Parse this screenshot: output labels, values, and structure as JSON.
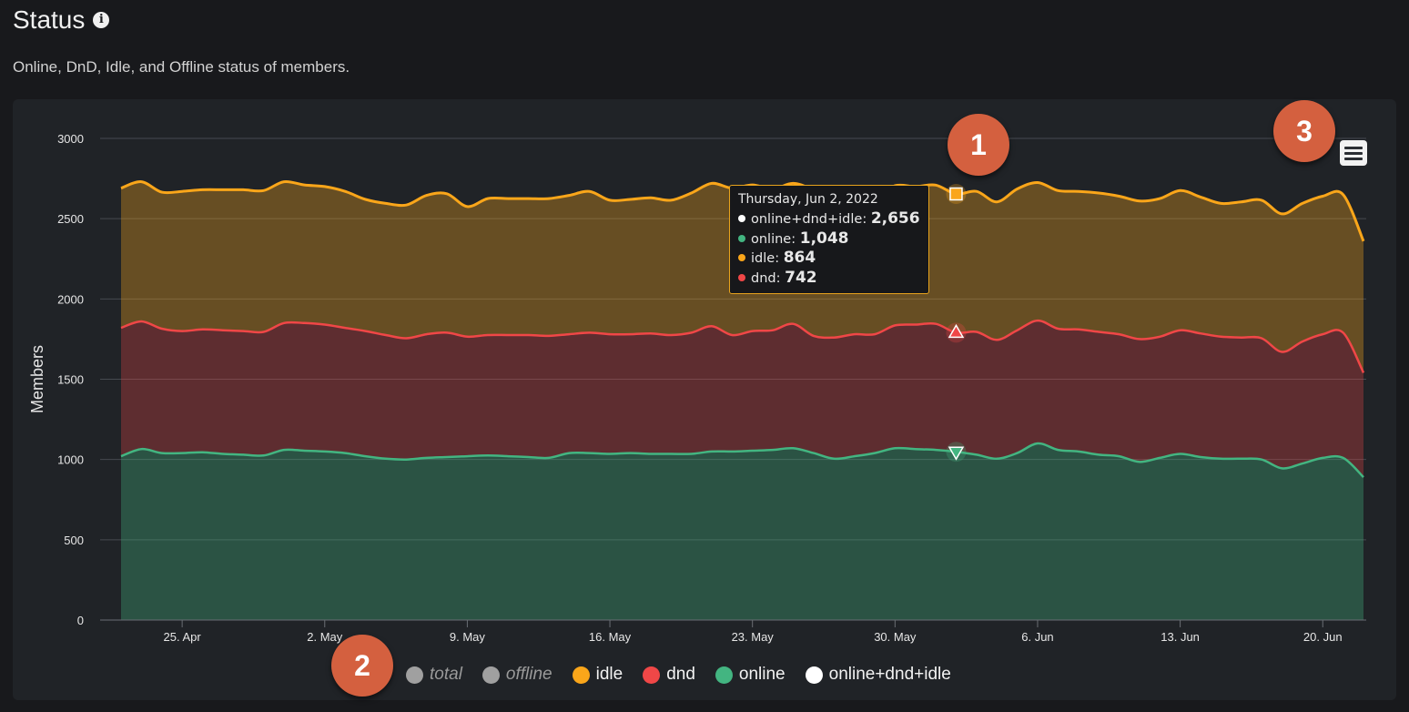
{
  "header": {
    "title": "Status",
    "subtitle": "Online, DnD, Idle, and Offline status of members."
  },
  "badges": [
    "1",
    "2",
    "3"
  ],
  "tooltip": {
    "date": "Thursday, Jun 2, 2022",
    "rows": [
      {
        "label": "online+dnd+idle",
        "value": "2,656",
        "color": "#ffffff"
      },
      {
        "label": "online",
        "value": "1,048",
        "color": "#43b581"
      },
      {
        "label": "idle",
        "value": "864",
        "color": "#faa61a"
      },
      {
        "label": "dnd",
        "value": "742",
        "color": "#f04747"
      }
    ]
  },
  "legend": [
    {
      "label": "total",
      "color": "#a0a0a0",
      "visible": false
    },
    {
      "label": "offline",
      "color": "#a0a0a0",
      "visible": false
    },
    {
      "label": "idle",
      "color": "#faa61a",
      "visible": true
    },
    {
      "label": "dnd",
      "color": "#f04747",
      "visible": true
    },
    {
      "label": "online",
      "color": "#43b581",
      "visible": true
    },
    {
      "label": "online+dnd+idle",
      "color": "#ffffff",
      "visible": true
    }
  ],
  "chart_data": {
    "type": "area",
    "stacked": true,
    "title": "",
    "xlabel": "",
    "ylabel": "Members",
    "ylim": [
      0,
      3000
    ],
    "y_ticks": [
      0,
      500,
      1000,
      1500,
      2000,
      2500,
      3000
    ],
    "x_range": [
      "2022-04-22",
      "2022-06-22"
    ],
    "x_ticks": [
      {
        "date": "2022-04-25",
        "label": "25. Apr"
      },
      {
        "date": "2022-05-02",
        "label": "2. May"
      },
      {
        "date": "2022-05-09",
        "label": "9. May"
      },
      {
        "date": "2022-05-16",
        "label": "16. May"
      },
      {
        "date": "2022-05-23",
        "label": "23. May"
      },
      {
        "date": "2022-05-30",
        "label": "30. May"
      },
      {
        "date": "2022-06-06",
        "label": "6. Jun"
      },
      {
        "date": "2022-06-13",
        "label": "13. Jun"
      },
      {
        "date": "2022-06-20",
        "label": "20. Jun"
      }
    ],
    "grid": true,
    "legend_position": "bottom",
    "highlight_date": "2022-06-02",
    "x": [
      "2022-04-22",
      "2022-04-23",
      "2022-04-24",
      "2022-04-25",
      "2022-04-26",
      "2022-04-27",
      "2022-04-28",
      "2022-04-29",
      "2022-04-30",
      "2022-05-01",
      "2022-05-02",
      "2022-05-03",
      "2022-05-04",
      "2022-05-05",
      "2022-05-06",
      "2022-05-07",
      "2022-05-08",
      "2022-05-09",
      "2022-05-10",
      "2022-05-11",
      "2022-05-12",
      "2022-05-13",
      "2022-05-14",
      "2022-05-15",
      "2022-05-16",
      "2022-05-17",
      "2022-05-18",
      "2022-05-19",
      "2022-05-20",
      "2022-05-21",
      "2022-05-22",
      "2022-05-23",
      "2022-05-24",
      "2022-05-25",
      "2022-05-26",
      "2022-05-27",
      "2022-05-28",
      "2022-05-29",
      "2022-05-30",
      "2022-05-31",
      "2022-06-01",
      "2022-06-02",
      "2022-06-03",
      "2022-06-04",
      "2022-06-05",
      "2022-06-06",
      "2022-06-07",
      "2022-06-08",
      "2022-06-09",
      "2022-06-10",
      "2022-06-11",
      "2022-06-12",
      "2022-06-13",
      "2022-06-14",
      "2022-06-15",
      "2022-06-16",
      "2022-06-17",
      "2022-06-18",
      "2022-06-19",
      "2022-06-20",
      "2022-06-21",
      "2022-06-22"
    ],
    "series": [
      {
        "name": "online",
        "color": "#43b581",
        "values": [
          1020,
          1065,
          1040,
          1040,
          1045,
          1035,
          1030,
          1025,
          1060,
          1055,
          1050,
          1040,
          1020,
          1005,
          1000,
          1010,
          1015,
          1020,
          1025,
          1020,
          1015,
          1010,
          1040,
          1040,
          1035,
          1040,
          1035,
          1035,
          1035,
          1050,
          1050,
          1055,
          1060,
          1070,
          1040,
          1005,
          1020,
          1040,
          1070,
          1065,
          1060,
          1048,
          1030,
          1005,
          1040,
          1100,
          1060,
          1050,
          1030,
          1020,
          985,
          1010,
          1035,
          1015,
          1005,
          1005,
          1000,
          945,
          975,
          1010,
          1010,
          890
        ]
      },
      {
        "name": "dnd",
        "color": "#f04747",
        "values": [
          800,
          795,
          775,
          760,
          765,
          770,
          770,
          770,
          790,
          795,
          790,
          780,
          780,
          770,
          755,
          770,
          775,
          745,
          750,
          755,
          760,
          760,
          740,
          750,
          745,
          740,
          750,
          740,
          755,
          780,
          725,
          745,
          745,
          775,
          730,
          755,
          760,
          740,
          765,
          775,
          785,
          742,
          765,
          740,
          765,
          765,
          755,
          760,
          765,
          760,
          765,
          755,
          770,
          770,
          760,
          755,
          755,
          725,
          760,
          770,
          780,
          650
        ]
      },
      {
        "name": "idle",
        "color": "#faa61a",
        "values": [
          870,
          870,
          850,
          870,
          870,
          875,
          880,
          880,
          880,
          860,
          860,
          850,
          820,
          820,
          830,
          865,
          865,
          810,
          850,
          850,
          850,
          855,
          865,
          880,
          835,
          840,
          845,
          840,
          870,
          890,
          915,
          910,
          880,
          875,
          910,
          870,
          880,
          850,
          870,
          860,
          864,
          864,
          875,
          860,
          880,
          860,
          860,
          860,
          865,
          860,
          860,
          860,
          870,
          850,
          830,
          845,
          860,
          860,
          860,
          860,
          860,
          820
        ]
      }
    ]
  }
}
